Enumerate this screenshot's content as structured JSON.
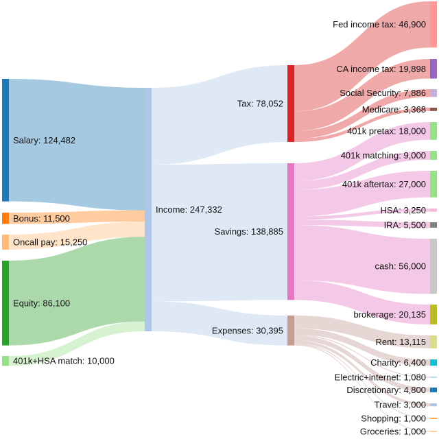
{
  "chart_data": {
    "type": "sankey",
    "nodes": [
      {
        "name": "Salary",
        "value": 124482,
        "color": "#1f77b4"
      },
      {
        "name": "Bonus",
        "value": 11500,
        "color": "#ff7f0e"
      },
      {
        "name": "Oncall pay",
        "value": 15250,
        "color": "#ffbb78"
      },
      {
        "name": "Equity",
        "value": 86100,
        "color": "#2ca02c"
      },
      {
        "name": "401k+HSA match",
        "value": 10000,
        "color": "#98df8a"
      },
      {
        "name": "Income",
        "value": 247332,
        "color": "#aec7e8"
      },
      {
        "name": "Tax",
        "value": 78052,
        "color": "#d62728"
      },
      {
        "name": "Savings",
        "value": 138885,
        "color": "#e377c2"
      },
      {
        "name": "Expenses",
        "value": 30395,
        "color": "#c49c94"
      },
      {
        "name": "Fed income tax",
        "value": 46900,
        "color": "#ff9896"
      },
      {
        "name": "CA income tax",
        "value": 19898,
        "color": "#9467bd"
      },
      {
        "name": "Social Security",
        "value": 7886,
        "color": "#c5b0d5"
      },
      {
        "name": "Medicare",
        "value": 3368,
        "color": "#8c564b"
      },
      {
        "name": "401k pretax",
        "value": 18000,
        "color": "#98df8a"
      },
      {
        "name": "401k matching",
        "value": 9000,
        "color": "#98df8a"
      },
      {
        "name": "401k aftertax",
        "value": 27000,
        "color": "#98df8a"
      },
      {
        "name": "HSA",
        "value": 3250,
        "color": "#f7b6d2"
      },
      {
        "name": "IRA",
        "value": 5500,
        "color": "#7f7f7f"
      },
      {
        "name": "cash",
        "value": 56000,
        "color": "#c7c7c7"
      },
      {
        "name": "brokerage",
        "value": 20135,
        "color": "#bcbd22"
      },
      {
        "name": "Rent",
        "value": 13115,
        "color": "#dbdb8d"
      },
      {
        "name": "Charity",
        "value": 6400,
        "color": "#17becf"
      },
      {
        "name": "Electric+internet",
        "value": 1080,
        "color": "#9edae5"
      },
      {
        "name": "Discretionary",
        "value": 4800,
        "color": "#1f77b4"
      },
      {
        "name": "Travel",
        "value": 3000,
        "color": "#aec7e8"
      },
      {
        "name": "Shopping",
        "value": 1000,
        "color": "#ff7f0e"
      },
      {
        "name": "Groceries",
        "value": 1000,
        "color": "#ffbb78"
      }
    ],
    "links": [
      {
        "source": "Salary",
        "target": "Income",
        "value": 124482
      },
      {
        "source": "Bonus",
        "target": "Income",
        "value": 11500
      },
      {
        "source": "Oncall pay",
        "target": "Income",
        "value": 15250
      },
      {
        "source": "Equity",
        "target": "Income",
        "value": 86100
      },
      {
        "source": "401k+HSA match",
        "target": "Income",
        "value": 10000
      },
      {
        "source": "Income",
        "target": "Tax",
        "value": 78052
      },
      {
        "source": "Income",
        "target": "Savings",
        "value": 138885
      },
      {
        "source": "Income",
        "target": "Expenses",
        "value": 30395
      },
      {
        "source": "Tax",
        "target": "Fed income tax",
        "value": 46900
      },
      {
        "source": "Tax",
        "target": "CA income tax",
        "value": 19898
      },
      {
        "source": "Tax",
        "target": "Social Security",
        "value": 7886
      },
      {
        "source": "Tax",
        "target": "Medicare",
        "value": 3368
      },
      {
        "source": "Savings",
        "target": "401k pretax",
        "value": 18000
      },
      {
        "source": "Savings",
        "target": "401k matching",
        "value": 9000
      },
      {
        "source": "Savings",
        "target": "401k aftertax",
        "value": 27000
      },
      {
        "source": "Savings",
        "target": "HSA",
        "value": 3250
      },
      {
        "source": "Savings",
        "target": "IRA",
        "value": 5500
      },
      {
        "source": "Savings",
        "target": "cash",
        "value": 56000
      },
      {
        "source": "Savings",
        "target": "brokerage",
        "value": 20135
      },
      {
        "source": "Expenses",
        "target": "Rent",
        "value": 13115
      },
      {
        "source": "Expenses",
        "target": "Charity",
        "value": 6400
      },
      {
        "source": "Expenses",
        "target": "Electric+internet",
        "value": 1080
      },
      {
        "source": "Expenses",
        "target": "Discretionary",
        "value": 4800
      },
      {
        "source": "Expenses",
        "target": "Travel",
        "value": 3000
      },
      {
        "source": "Expenses",
        "target": "Shopping",
        "value": 1000
      },
      {
        "source": "Expenses",
        "target": "Groceries",
        "value": 1000
      }
    ]
  }
}
